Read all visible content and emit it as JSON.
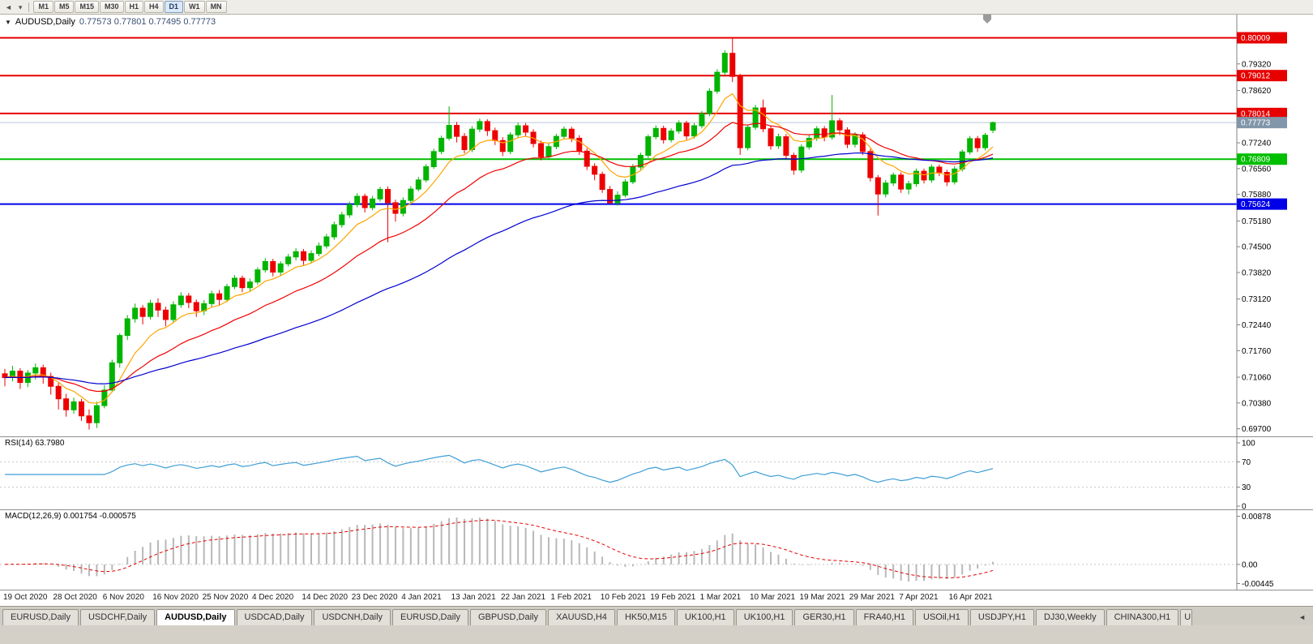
{
  "toolbar": {
    "left_icons": [
      {
        "name": "scroll-left-icon",
        "glyph": "◄"
      },
      {
        "name": "dropdown-caret-icon",
        "glyph": "▾"
      }
    ],
    "timeframes": [
      "M1",
      "M5",
      "M15",
      "M30",
      "H1",
      "H4",
      "D1",
      "W1",
      "MN"
    ],
    "active_timeframe_index": 6
  },
  "chart_header": {
    "dropdown_glyph": "▼",
    "symbol": "AUDUSD,Daily",
    "ohlc": "0.77573 0.77801 0.77495 0.77773"
  },
  "rsi_panel": {
    "label": "RSI(14) 63.7980"
  },
  "macd_panel": {
    "label": "MACD(12,26,9) 0.001754 -0.000575"
  },
  "chart_data": {
    "type": "candlestick",
    "symbol": "AUDUSD",
    "timeframe": "Daily",
    "up_color": "#00B400",
    "down_color": "#EE0000",
    "price_range": {
      "min": 0.695,
      "max": 0.8062
    },
    "y_ticks": [
      "0.79320",
      "0.78620",
      "0.77240",
      "0.76560",
      "0.75880",
      "0.75180",
      "0.74500",
      "0.73820",
      "0.73120",
      "0.72440",
      "0.71760",
      "0.71060",
      "0.70380",
      "0.69700"
    ],
    "x_labels": [
      "19 Oct 2020",
      "28 Oct 2020",
      "6 Nov 2020",
      "16 Nov 2020",
      "25 Nov 2020",
      "4 Dec 2020",
      "14 Dec 2020",
      "23 Dec 2020",
      "4 Jan 2021",
      "13 Jan 2021",
      "22 Jan 2021",
      "1 Feb 2021",
      "10 Feb 2021",
      "19 Feb 2021",
      "1 Mar 2021",
      "10 Mar 2021",
      "19 Mar 2021",
      "29 Mar 2021",
      "7 Apr 2021",
      "16 Apr 2021"
    ],
    "hlines": [
      {
        "price": 0.80009,
        "label": "0.80009",
        "color": "#E60000"
      },
      {
        "price": 0.79012,
        "label": "0.79012",
        "color": "#E60000"
      },
      {
        "price": 0.78014,
        "label": "0.78014",
        "color": "#E60000"
      },
      {
        "price": 0.76809,
        "label": "0.76809",
        "color": "#00BE00"
      },
      {
        "price": 0.75624,
        "label": "0.75624",
        "color": "#0000E8"
      }
    ],
    "current_price": {
      "value": 0.77773,
      "label": "0.77773",
      "badge_color": "#8296AA",
      "line_color": "#B8C8D8"
    },
    "moving_averages": [
      {
        "name": "ma-fast",
        "period": 8,
        "color": "#FFA500"
      },
      {
        "name": "ma-mid",
        "period": 21,
        "color": "#F00000"
      },
      {
        "name": "ma-slow",
        "period": 55,
        "color": "#0000D0"
      }
    ],
    "candles": [
      [
        0.7115,
        0.7128,
        0.7082,
        0.7105
      ],
      [
        0.7105,
        0.7136,
        0.7095,
        0.7122
      ],
      [
        0.7122,
        0.713,
        0.7075,
        0.7092
      ],
      [
        0.7092,
        0.7125,
        0.708,
        0.7117
      ],
      [
        0.7117,
        0.7142,
        0.71,
        0.7131
      ],
      [
        0.7131,
        0.7139,
        0.7089,
        0.7108
      ],
      [
        0.7108,
        0.7118,
        0.706,
        0.7082
      ],
      [
        0.7082,
        0.7092,
        0.7021,
        0.7049
      ],
      [
        0.7049,
        0.7062,
        0.7002,
        0.702
      ],
      [
        0.702,
        0.7052,
        0.701,
        0.7041
      ],
      [
        0.7041,
        0.7049,
        0.6991,
        0.7004
      ],
      [
        0.7004,
        0.7021,
        0.6968,
        0.6986
      ],
      [
        0.6986,
        0.7041,
        0.6972,
        0.7031
      ],
      [
        0.7031,
        0.7085,
        0.7024,
        0.7072
      ],
      [
        0.7072,
        0.7152,
        0.7068,
        0.7144
      ],
      [
        0.7144,
        0.7222,
        0.7131,
        0.7216
      ],
      [
        0.7216,
        0.727,
        0.7204,
        0.726
      ],
      [
        0.726,
        0.73,
        0.725,
        0.7288
      ],
      [
        0.7288,
        0.7296,
        0.7245,
        0.7266
      ],
      [
        0.7266,
        0.731,
        0.7258,
        0.7301
      ],
      [
        0.7301,
        0.7314,
        0.7265,
        0.7283
      ],
      [
        0.7283,
        0.7292,
        0.724,
        0.7258
      ],
      [
        0.7258,
        0.7306,
        0.725,
        0.7297
      ],
      [
        0.7297,
        0.733,
        0.7289,
        0.732
      ],
      [
        0.732,
        0.7328,
        0.7288,
        0.7303
      ],
      [
        0.7303,
        0.7311,
        0.7265,
        0.7281
      ],
      [
        0.7281,
        0.7309,
        0.727,
        0.73
      ],
      [
        0.73,
        0.7334,
        0.7292,
        0.7326
      ],
      [
        0.7326,
        0.7336,
        0.7296,
        0.7311
      ],
      [
        0.7311,
        0.7352,
        0.7304,
        0.7345
      ],
      [
        0.7345,
        0.7375,
        0.7338,
        0.7367
      ],
      [
        0.7367,
        0.7374,
        0.733,
        0.7342
      ],
      [
        0.7342,
        0.7366,
        0.7332,
        0.7357
      ],
      [
        0.7357,
        0.7396,
        0.735,
        0.7389
      ],
      [
        0.7389,
        0.742,
        0.7382,
        0.7411
      ],
      [
        0.7411,
        0.7418,
        0.7372,
        0.7383
      ],
      [
        0.7383,
        0.7412,
        0.7374,
        0.7405
      ],
      [
        0.7405,
        0.7431,
        0.7398,
        0.7423
      ],
      [
        0.7423,
        0.7446,
        0.7414,
        0.7437
      ],
      [
        0.7437,
        0.7444,
        0.7402,
        0.7414
      ],
      [
        0.7414,
        0.744,
        0.7406,
        0.7432
      ],
      [
        0.7432,
        0.7461,
        0.7425,
        0.7452
      ],
      [
        0.7452,
        0.7484,
        0.7445,
        0.7476
      ],
      [
        0.7476,
        0.7516,
        0.7468,
        0.7508
      ],
      [
        0.7508,
        0.7542,
        0.75,
        0.7534
      ],
      [
        0.7534,
        0.7569,
        0.7526,
        0.7561
      ],
      [
        0.7561,
        0.7591,
        0.7554,
        0.7583
      ],
      [
        0.7583,
        0.759,
        0.754,
        0.7553
      ],
      [
        0.7553,
        0.7584,
        0.7546,
        0.7576
      ],
      [
        0.7576,
        0.7608,
        0.7569,
        0.7601
      ],
      [
        0.7601,
        0.7609,
        0.7462,
        0.7566
      ],
      [
        0.7566,
        0.7574,
        0.7516,
        0.7538
      ],
      [
        0.7538,
        0.758,
        0.753,
        0.7572
      ],
      [
        0.7572,
        0.761,
        0.7565,
        0.7602
      ],
      [
        0.7602,
        0.7634,
        0.7596,
        0.7626
      ],
      [
        0.7626,
        0.7668,
        0.762,
        0.7661
      ],
      [
        0.7661,
        0.7708,
        0.7655,
        0.7701
      ],
      [
        0.7701,
        0.7743,
        0.7694,
        0.7736
      ],
      [
        0.7736,
        0.782,
        0.773,
        0.777
      ],
      [
        0.777,
        0.7779,
        0.7725,
        0.7741
      ],
      [
        0.7741,
        0.775,
        0.7696,
        0.7706
      ],
      [
        0.7706,
        0.7768,
        0.7699,
        0.776
      ],
      [
        0.776,
        0.7788,
        0.7752,
        0.778
      ],
      [
        0.778,
        0.7786,
        0.7742,
        0.7756
      ],
      [
        0.7756,
        0.7764,
        0.7718,
        0.773
      ],
      [
        0.773,
        0.7739,
        0.7689,
        0.7701
      ],
      [
        0.7701,
        0.7752,
        0.7694,
        0.7745
      ],
      [
        0.7745,
        0.7777,
        0.7738,
        0.7769
      ],
      [
        0.7769,
        0.7776,
        0.774,
        0.7752
      ],
      [
        0.7752,
        0.776,
        0.7712,
        0.7722
      ],
      [
        0.7722,
        0.773,
        0.7678,
        0.7687
      ],
      [
        0.7687,
        0.7722,
        0.768,
        0.7714
      ],
      [
        0.7714,
        0.7748,
        0.7707,
        0.7741
      ],
      [
        0.7741,
        0.7767,
        0.7734,
        0.776
      ],
      [
        0.776,
        0.7766,
        0.7726,
        0.7736
      ],
      [
        0.7736,
        0.7744,
        0.7692,
        0.7702
      ],
      [
        0.7702,
        0.771,
        0.7652,
        0.7662
      ],
      [
        0.7662,
        0.767,
        0.7625,
        0.7641
      ],
      [
        0.7641,
        0.7648,
        0.7592,
        0.7601
      ],
      [
        0.7601,
        0.761,
        0.7563,
        0.7566
      ],
      [
        0.7566,
        0.7596,
        0.7558,
        0.7586
      ],
      [
        0.7586,
        0.7628,
        0.758,
        0.7621
      ],
      [
        0.7621,
        0.7668,
        0.7615,
        0.766
      ],
      [
        0.766,
        0.7698,
        0.7653,
        0.7691
      ],
      [
        0.7691,
        0.7746,
        0.7684,
        0.774
      ],
      [
        0.774,
        0.777,
        0.7733,
        0.7762
      ],
      [
        0.7762,
        0.7769,
        0.7722,
        0.7732
      ],
      [
        0.7732,
        0.7762,
        0.7725,
        0.7755
      ],
      [
        0.7755,
        0.7783,
        0.7748,
        0.7776
      ],
      [
        0.7776,
        0.7782,
        0.7732,
        0.7742
      ],
      [
        0.7742,
        0.7776,
        0.7735,
        0.7769
      ],
      [
        0.7769,
        0.7808,
        0.7762,
        0.7801
      ],
      [
        0.7801,
        0.7868,
        0.7794,
        0.786
      ],
      [
        0.786,
        0.7918,
        0.7853,
        0.791
      ],
      [
        0.791,
        0.7968,
        0.7902,
        0.796
      ],
      [
        0.796,
        0.8001,
        0.7884,
        0.7899
      ],
      [
        0.7899,
        0.7906,
        0.7692,
        0.7711
      ],
      [
        0.7711,
        0.7772,
        0.7704,
        0.7765
      ],
      [
        0.7765,
        0.7824,
        0.7758,
        0.7816
      ],
      [
        0.7816,
        0.7838,
        0.7752,
        0.7761
      ],
      [
        0.7761,
        0.7769,
        0.7706,
        0.7716
      ],
      [
        0.7716,
        0.7748,
        0.7708,
        0.774
      ],
      [
        0.774,
        0.7747,
        0.768,
        0.7691
      ],
      [
        0.7691,
        0.7698,
        0.764,
        0.7652
      ],
      [
        0.7652,
        0.772,
        0.7645,
        0.7713
      ],
      [
        0.7713,
        0.7744,
        0.7706,
        0.7736
      ],
      [
        0.7736,
        0.7768,
        0.7729,
        0.7761
      ],
      [
        0.7761,
        0.7768,
        0.7728,
        0.7739
      ],
      [
        0.7739,
        0.785,
        0.7732,
        0.7782
      ],
      [
        0.7782,
        0.7789,
        0.7744,
        0.7758
      ],
      [
        0.7758,
        0.7765,
        0.771,
        0.772
      ],
      [
        0.772,
        0.7752,
        0.7712,
        0.7745
      ],
      [
        0.7745,
        0.7752,
        0.7692,
        0.7701
      ],
      [
        0.7701,
        0.7708,
        0.7622,
        0.7632
      ],
      [
        0.7632,
        0.7639,
        0.7532,
        0.7589
      ],
      [
        0.7589,
        0.7626,
        0.758,
        0.7618
      ],
      [
        0.7618,
        0.7646,
        0.761,
        0.7639
      ],
      [
        0.7639,
        0.7646,
        0.7592,
        0.7602
      ],
      [
        0.7602,
        0.7624,
        0.7588,
        0.7616
      ],
      [
        0.7616,
        0.7656,
        0.7608,
        0.7649
      ],
      [
        0.7649,
        0.7656,
        0.7617,
        0.7626
      ],
      [
        0.7626,
        0.7667,
        0.7619,
        0.766
      ],
      [
        0.766,
        0.7667,
        0.7636,
        0.7646
      ],
      [
        0.7646,
        0.7653,
        0.761,
        0.7621
      ],
      [
        0.7621,
        0.7662,
        0.7614,
        0.7655
      ],
      [
        0.7655,
        0.7706,
        0.7648,
        0.77
      ],
      [
        0.77,
        0.7742,
        0.7693,
        0.7735
      ],
      [
        0.7735,
        0.7742,
        0.77,
        0.7711
      ],
      [
        0.7711,
        0.775,
        0.7704,
        0.7744
      ],
      [
        0.77573,
        0.77801,
        0.77495,
        0.77773
      ]
    ],
    "rsi": {
      "period": 14,
      "levels": [
        "100",
        "70",
        "30",
        "0"
      ],
      "level_values": [
        100,
        70,
        30,
        0
      ],
      "dashed_levels": [
        70,
        30
      ],
      "color": "#3E9ED6",
      "last_value_label": "63.7980"
    },
    "macd": {
      "fast": 12,
      "slow": 26,
      "signal_period": 9,
      "axis_labels": [
        "0.00878",
        "0.00",
        "-0.00445"
      ],
      "hist_color": "#B8B8B8",
      "signal_color": "#E60000"
    }
  },
  "tabs": {
    "items": [
      "EURUSD,Daily",
      "USDCHF,Daily",
      "AUDUSD,Daily",
      "USDCAD,Daily",
      "USDCNH,Daily",
      "EURUSD,Daily",
      "GBPUSD,Daily",
      "XAUUSD,H4",
      "HK50,M15",
      "UK100,H1",
      "UK100,H1",
      "GER30,H1",
      "FRA40,H1",
      "USOil,H1",
      "USDJPY,H1",
      "DJ30,Weekly",
      "CHINA300,H1"
    ],
    "active_index": 2,
    "partial_label": "U",
    "scroll_left_glyph": "◄"
  }
}
